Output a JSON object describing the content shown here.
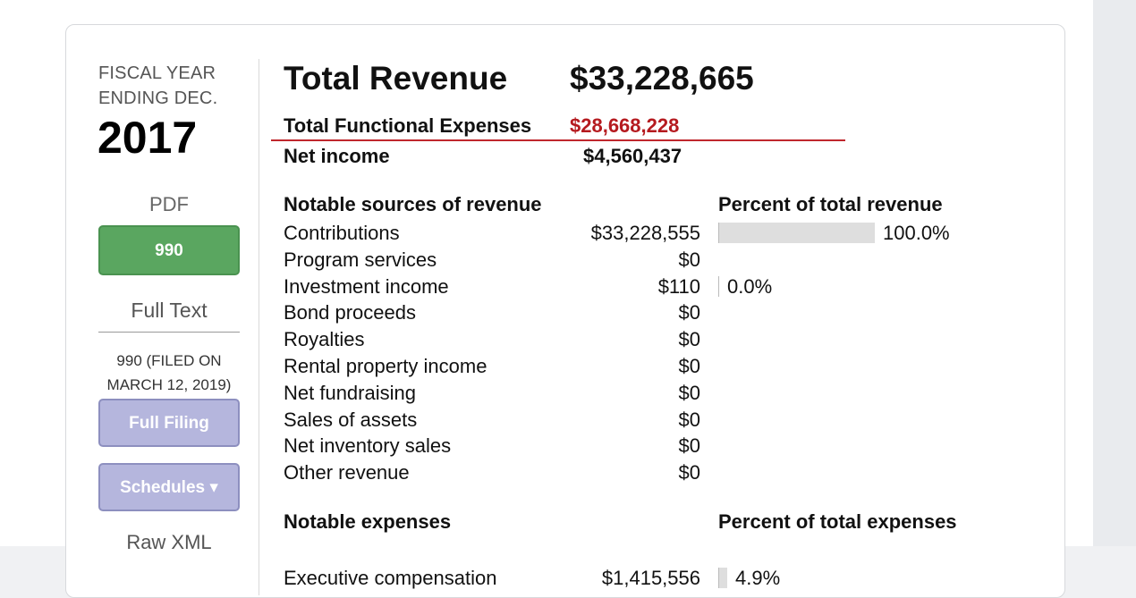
{
  "fiscal_year": {
    "label_line1": "FISCAL YEAR",
    "label_line2": "ENDING DEC.",
    "year": "2017"
  },
  "sidebar": {
    "pdf_label": "PDF",
    "button_990": "990",
    "full_text_label": "Full Text",
    "filed_line1": "990 (FILED ON",
    "filed_line2": "MARCH 12, 2019)",
    "full_filing_button": "Full Filing",
    "schedules_button": "Schedules ▾",
    "raw_xml_label": "Raw XML"
  },
  "summary": {
    "total_revenue_label": "Total Revenue",
    "total_revenue_value": "$33,228,665",
    "total_functional_expenses_label": "Total Functional Expenses",
    "total_functional_expenses_value": "$28,668,228",
    "net_income_label": "Net income",
    "net_income_value": "$4,560,437"
  },
  "revenue": {
    "heading": "Notable sources of revenue",
    "percent_heading": "Percent of total revenue",
    "rows": [
      {
        "label": "Contributions",
        "value": "$33,228,555",
        "percent": "100.0%",
        "fraction": 1.0
      },
      {
        "label": "Program services",
        "value": "$0",
        "percent": "",
        "fraction": 0
      },
      {
        "label": "Investment income",
        "value": "$110",
        "percent": "0.0%",
        "fraction": 0.0
      },
      {
        "label": "Bond proceeds",
        "value": "$0",
        "percent": "",
        "fraction": 0
      },
      {
        "label": "Royalties",
        "value": "$0",
        "percent": "",
        "fraction": 0
      },
      {
        "label": "Rental property income",
        "value": "$0",
        "percent": "",
        "fraction": 0
      },
      {
        "label": "Net fundraising",
        "value": "$0",
        "percent": "",
        "fraction": 0
      },
      {
        "label": "Sales of assets",
        "value": "$0",
        "percent": "",
        "fraction": 0
      },
      {
        "label": "Net inventory sales",
        "value": "$0",
        "percent": "",
        "fraction": 0
      },
      {
        "label": "Other revenue",
        "value": "$0",
        "percent": "",
        "fraction": 0
      }
    ]
  },
  "expenses": {
    "heading": "Notable expenses",
    "percent_heading": "Percent of total expenses",
    "first_row": {
      "label": "Executive compensation",
      "value": "$1,415,556",
      "percent": "4.9%",
      "fraction": 0.049
    }
  },
  "colors": {
    "accent_red": "#b51a1f",
    "button_green": "#5aa660",
    "button_lavender": "#b5b6dd",
    "bar_gray": "#dedede"
  }
}
